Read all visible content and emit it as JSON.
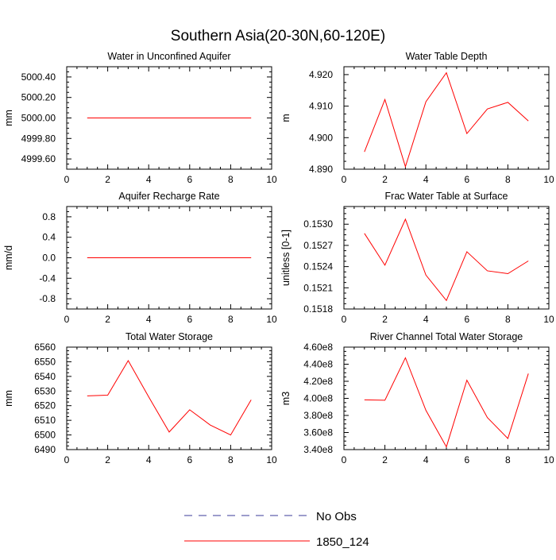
{
  "figure_title": "Southern Asia(20-30N,60-120E)",
  "legend": [
    {
      "label": "No Obs",
      "style": "dashed",
      "color": "#3b3b9a"
    },
    {
      "label": "1850_124",
      "style": "solid",
      "color": "#ff0000"
    }
  ],
  "chart_data": [
    {
      "type": "line",
      "title": "Water in Unconfined Aquifer",
      "ylabel": "mm",
      "xlim": [
        0,
        10
      ],
      "ylim": [
        4999.5,
        5000.5
      ],
      "xticks": [
        0,
        2,
        4,
        6,
        8,
        10
      ],
      "xtick_labels": [
        "0",
        "2",
        "4",
        "6",
        "8",
        "10"
      ],
      "yticks": [
        4999.6,
        4999.8,
        5000.0,
        5000.2,
        5000.4
      ],
      "ytick_labels": [
        "4999.60",
        "4999.80",
        "5000.00",
        "5000.20",
        "5000.40"
      ],
      "series": [
        {
          "name": "1850_124",
          "color": "#ff0000",
          "x": [
            1,
            2,
            3,
            4,
            5,
            6,
            7,
            8,
            9
          ],
          "values": [
            5000,
            5000,
            5000,
            5000,
            5000,
            5000,
            5000,
            5000,
            5000
          ]
        }
      ]
    },
    {
      "type": "line",
      "title": "Water Table Depth",
      "ylabel": "m",
      "xlim": [
        0,
        10
      ],
      "ylim": [
        4.89,
        4.9225
      ],
      "xticks": [
        0,
        2,
        4,
        6,
        8,
        10
      ],
      "xtick_labels": [
        "0",
        "2",
        "4",
        "6",
        "8",
        "10"
      ],
      "yticks": [
        4.89,
        4.9,
        4.91,
        4.92
      ],
      "ytick_labels": [
        "4.890",
        "4.900",
        "4.910",
        "4.920"
      ],
      "series": [
        {
          "name": "1850_124",
          "color": "#ff0000",
          "x": [
            1,
            2,
            3,
            4,
            5,
            6,
            7,
            8,
            9
          ],
          "values": [
            4.8955,
            4.9121,
            4.8908,
            4.9114,
            4.9206,
            4.9013,
            4.9091,
            4.9112,
            4.9053
          ]
        }
      ]
    },
    {
      "type": "line",
      "title": "Aquifer Recharge Rate",
      "ylabel": "mm/d",
      "xlim": [
        0,
        10
      ],
      "ylim": [
        -1,
        1
      ],
      "xticks": [
        0,
        2,
        4,
        6,
        8,
        10
      ],
      "xtick_labels": [
        "0",
        "2",
        "4",
        "6",
        "8",
        "10"
      ],
      "yticks": [
        -0.8,
        -0.4,
        0,
        0.4,
        0.8
      ],
      "ytick_labels": [
        "-0.8",
        "-0.4",
        "0.0",
        "0.4",
        "0.8"
      ],
      "series": [
        {
          "name": "1850_124",
          "color": "#ff0000",
          "x": [
            1,
            2,
            3,
            4,
            5,
            6,
            7,
            8,
            9
          ],
          "values": [
            0,
            0,
            0,
            0,
            0,
            0,
            0,
            0,
            0
          ]
        }
      ]
    },
    {
      "type": "line",
      "title": "Frac Water Table at Surface",
      "ylabel": "unitless [0-1]",
      "xlim": [
        0,
        10
      ],
      "ylim": [
        0.1518,
        0.15325
      ],
      "xticks": [
        0,
        2,
        4,
        6,
        8,
        10
      ],
      "xtick_labels": [
        "0",
        "2",
        "4",
        "6",
        "8",
        "10"
      ],
      "yticks": [
        0.1518,
        0.1521,
        0.1524,
        0.1527,
        0.153
      ],
      "ytick_labels": [
        "0.1518",
        "0.1521",
        "0.1524",
        "0.1527",
        "0.1530"
      ],
      "series": [
        {
          "name": "1850_124",
          "color": "#ff0000",
          "x": [
            1,
            2,
            3,
            4,
            5,
            6,
            7,
            8,
            9
          ],
          "values": [
            0.15287,
            0.15242,
            0.15307,
            0.15228,
            0.15192,
            0.15261,
            0.15234,
            0.1523,
            0.15248
          ]
        }
      ]
    },
    {
      "type": "line",
      "title": "Total Water Storage",
      "ylabel": "mm",
      "xlim": [
        0,
        10
      ],
      "ylim": [
        6490,
        6560
      ],
      "xticks": [
        0,
        2,
        4,
        6,
        8,
        10
      ],
      "xtick_labels": [
        "0",
        "2",
        "4",
        "6",
        "8",
        "10"
      ],
      "yticks": [
        6490,
        6500,
        6510,
        6520,
        6530,
        6540,
        6550,
        6560
      ],
      "ytick_labels": [
        "6490",
        "6500",
        "6510",
        "6520",
        "6530",
        "6540",
        "6550",
        "6560"
      ],
      "series": [
        {
          "name": "1850_124",
          "color": "#ff0000",
          "x": [
            1,
            2,
            3,
            4,
            5,
            6,
            7,
            8,
            9
          ],
          "values": [
            6526.7,
            6527.2,
            6550.8,
            6526,
            6502,
            6517.2,
            6506.8,
            6500,
            6524
          ]
        }
      ]
    },
    {
      "type": "line",
      "title": "River Channel Total Water Storage",
      "ylabel": "m3",
      "xlim": [
        0,
        10
      ],
      "ylim": [
        340000000,
        460000000
      ],
      "xticks": [
        0,
        2,
        4,
        6,
        8,
        10
      ],
      "xtick_labels": [
        "0",
        "2",
        "4",
        "6",
        "8",
        "10"
      ],
      "yticks": [
        340000000,
        360000000,
        380000000,
        400000000,
        420000000,
        440000000,
        460000000
      ],
      "ytick_labels": [
        "3.40e8",
        "3.60e8",
        "3.80e8",
        "4.00e8",
        "4.20e8",
        "4.40e8",
        "4.60e8"
      ],
      "series": [
        {
          "name": "1850_124",
          "color": "#ff0000",
          "x": [
            1,
            2,
            3,
            4,
            5,
            6,
            7,
            8,
            9
          ],
          "values": [
            398300000,
            397800000,
            447500000,
            386000000,
            343200000,
            421300000,
            377500000,
            353000000,
            429000000
          ]
        }
      ]
    }
  ]
}
